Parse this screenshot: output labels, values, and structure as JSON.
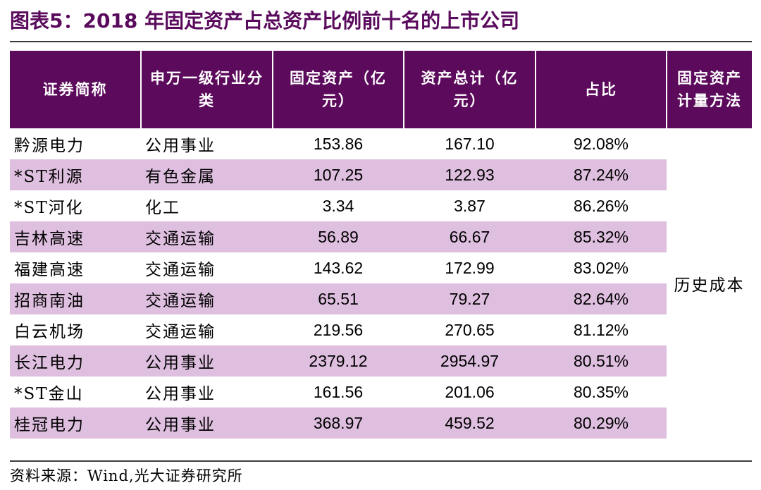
{
  "title": "图表5：2018 年固定资产占总资产比例前十名的上市公司",
  "table": {
    "headers": [
      "证券简称",
      "申万一级行业分类",
      "固定资产（亿元）",
      "资产总计（亿元）",
      "占比",
      "固定资产计量方法"
    ],
    "rows": [
      {
        "name": "黔源电力",
        "industry": "公用事业",
        "fixed_assets": "153.86",
        "total_assets": "167.10",
        "ratio": "92.08%"
      },
      {
        "name": "*ST利源",
        "industry": "有色金属",
        "fixed_assets": "107.25",
        "total_assets": "122.93",
        "ratio": "87.24%"
      },
      {
        "name": "*ST河化",
        "industry": "化工",
        "fixed_assets": "3.34",
        "total_assets": "3.87",
        "ratio": "86.26%"
      },
      {
        "name": "吉林高速",
        "industry": "交通运输",
        "fixed_assets": "56.89",
        "total_assets": "66.67",
        "ratio": "85.32%"
      },
      {
        "name": "福建高速",
        "industry": "交通运输",
        "fixed_assets": "143.62",
        "total_assets": "172.99",
        "ratio": "83.02%"
      },
      {
        "name": "招商南油",
        "industry": "交通运输",
        "fixed_assets": "65.51",
        "total_assets": "79.27",
        "ratio": "82.64%"
      },
      {
        "name": "白云机场",
        "industry": "交通运输",
        "fixed_assets": "219.56",
        "total_assets": "270.65",
        "ratio": "81.12%"
      },
      {
        "name": "长江电力",
        "industry": "公用事业",
        "fixed_assets": "2379.12",
        "total_assets": "2954.97",
        "ratio": "80.51%"
      },
      {
        "name": "*ST金山",
        "industry": "公用事业",
        "fixed_assets": "161.56",
        "total_assets": "201.06",
        "ratio": "80.35%"
      },
      {
        "name": "桂冠电力",
        "industry": "公用事业",
        "fixed_assets": "368.97",
        "total_assets": "459.52",
        "ratio": "80.29%"
      }
    ],
    "method": "历史成本"
  },
  "source": "资料来源：Wind,光大证券研究所",
  "colors": {
    "title": "#5a0a5c",
    "header_bg": "#5c0a5c",
    "header_text": "#ffffff",
    "row_shade": "#dfbfdf"
  }
}
